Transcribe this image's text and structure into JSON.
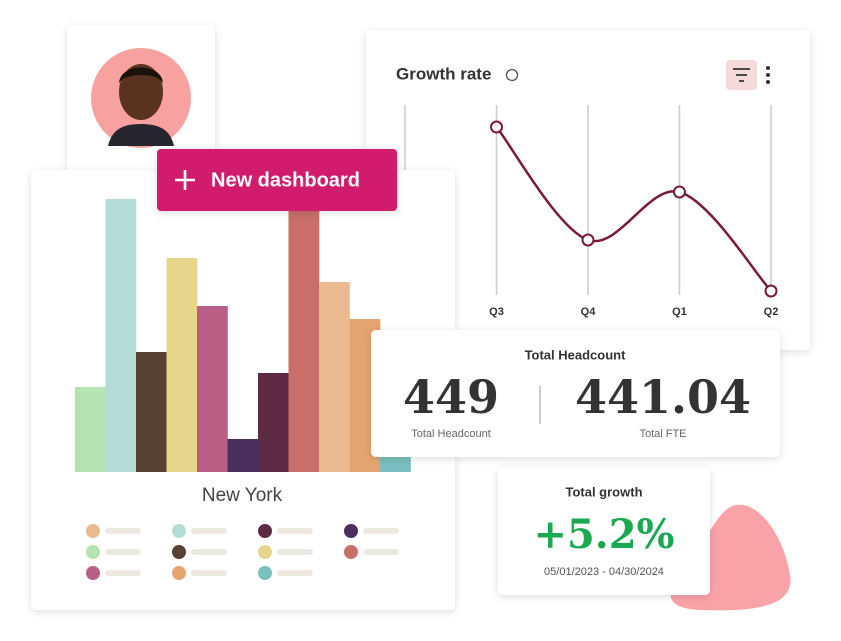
{
  "chart_data": [
    {
      "type": "bar",
      "title": "New York",
      "categories": [
        null,
        null,
        null,
        null,
        null,
        null,
        null,
        null,
        null,
        null,
        null
      ],
      "values": [
        85,
        273,
        120,
        214,
        166,
        33,
        99,
        282,
        190,
        153,
        30
      ],
      "colors": [
        "#b5e3b1",
        "#b3ddd6",
        "#574133",
        "#e5d68c",
        "#b95f88",
        "#4b2f5e",
        "#5e2a46",
        "#c96e6a",
        "#ebb98f",
        "#e5a370",
        "#79bfbf"
      ]
    },
    {
      "type": "line",
      "title": "Growth rate",
      "categories": [
        null,
        "Q3",
        "Q4",
        "Q1",
        "Q2"
      ],
      "values": [
        null,
        173,
        60,
        108,
        9
      ],
      "color": "#7a1a3c",
      "grid": true
    }
  ],
  "button": {
    "label": "New dashboard"
  },
  "headcount": {
    "title": "Total Headcount",
    "value": "449",
    "value_caption": "Total Headcount",
    "fte": "441.04",
    "fte_caption": "Total FTE"
  },
  "growth": {
    "title": "Total growth",
    "value": "+5.2%",
    "period": "05/01/2023 - 04/30/2024"
  }
}
